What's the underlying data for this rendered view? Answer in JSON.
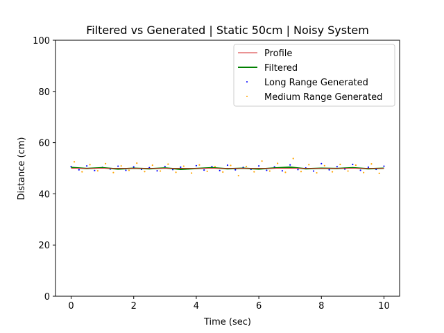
{
  "chart_data": {
    "type": "line",
    "title": "Filtered vs Generated | Static 50cm | Noisy System",
    "xlabel": "Time (sec)",
    "ylabel": "Distance (cm)",
    "xlim": [
      -0.5,
      10.5
    ],
    "ylim": [
      0,
      100
    ],
    "xticks": [
      0,
      2,
      4,
      6,
      8,
      10
    ],
    "yticks": [
      0,
      20,
      40,
      60,
      80,
      100
    ],
    "grid": false,
    "legend_position": "top-right",
    "colors": {
      "profile": "#d62728",
      "filtered": "#008000",
      "long_range": "#0000ff",
      "medium_range": "#ffa500"
    },
    "series": [
      {
        "name": "Profile",
        "kind": "line",
        "x": [
          0,
          10
        ],
        "y": [
          50,
          50
        ]
      },
      {
        "name": "Filtered",
        "kind": "line",
        "x": [
          0,
          0.5,
          1,
          1.5,
          2,
          2.5,
          3,
          3.5,
          4,
          4.5,
          5,
          5.5,
          6,
          6.5,
          7,
          7.5,
          8,
          8.5,
          9,
          9.5,
          10
        ],
        "y": [
          50.3,
          49.9,
          50.2,
          49.7,
          50.0,
          49.8,
          50.1,
          49.6,
          49.9,
          50.2,
          49.8,
          50.0,
          49.7,
          50.1,
          50.4,
          49.8,
          50.0,
          49.9,
          50.2,
          49.8,
          50.0
        ]
      },
      {
        "name": "Long Range Generated",
        "kind": "scatter",
        "x": [
          0.0,
          0.25,
          0.5,
          0.75,
          1.0,
          1.25,
          1.5,
          1.75,
          2.0,
          2.25,
          2.5,
          2.75,
          3.0,
          3.25,
          3.5,
          3.75,
          4.0,
          4.25,
          4.5,
          4.75,
          5.0,
          5.25,
          5.5,
          5.75,
          6.0,
          6.25,
          6.5,
          6.75,
          7.0,
          7.25,
          7.5,
          7.75,
          8.0,
          8.25,
          8.5,
          8.75,
          9.0,
          9.25,
          9.5,
          9.75,
          10.0
        ],
        "y": [
          50.6,
          49.4,
          50.9,
          49.1,
          50.3,
          49.7,
          50.8,
          49.2,
          50.5,
          49.6,
          50.2,
          49.0,
          50.7,
          49.5,
          50.4,
          49.8,
          51.0,
          49.3,
          50.6,
          49.1,
          51.2,
          49.4,
          50.3,
          49.6,
          50.9,
          49.2,
          50.5,
          49.0,
          51.3,
          49.5,
          50.1,
          48.9,
          51.8,
          49.4,
          50.6,
          49.7,
          51.5,
          49.2,
          50.4,
          49.6,
          50.8
        ]
      },
      {
        "name": "Medium Range Generated",
        "kind": "scatter",
        "x": [
          0.1,
          0.35,
          0.6,
          0.85,
          1.1,
          1.35,
          1.6,
          1.85,
          2.1,
          2.35,
          2.6,
          2.85,
          3.1,
          3.35,
          3.6,
          3.85,
          4.1,
          4.35,
          4.6,
          4.85,
          5.1,
          5.35,
          5.6,
          5.85,
          6.1,
          6.35,
          6.6,
          6.85,
          7.1,
          7.35,
          7.6,
          7.85,
          8.1,
          8.35,
          8.6,
          8.85,
          9.1,
          9.35,
          9.6,
          9.85
        ],
        "y": [
          52.5,
          48.6,
          51.4,
          49.0,
          51.8,
          48.3,
          50.9,
          49.2,
          52.0,
          48.7,
          51.2,
          48.9,
          51.6,
          48.4,
          50.8,
          48.1,
          51.3,
          48.8,
          50.6,
          48.5,
          51.1,
          47.1,
          50.7,
          48.6,
          52.8,
          48.9,
          51.9,
          48.4,
          53.8,
          48.7,
          51.4,
          48.2,
          51.0,
          48.6,
          51.5,
          48.9,
          51.2,
          48.3,
          51.7,
          48.0
        ]
      }
    ]
  }
}
